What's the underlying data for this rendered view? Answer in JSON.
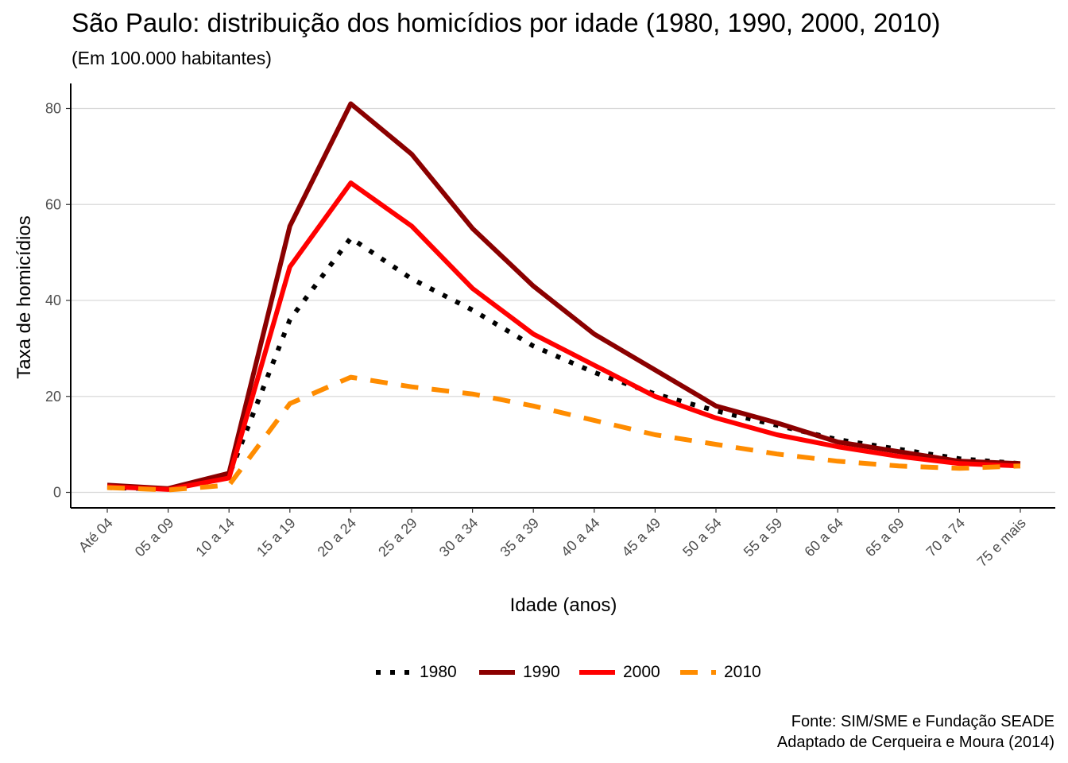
{
  "title": "São Paulo: distribuição dos homicídios por idade (1980, 1990, 2000, 2010)",
  "subtitle": "(Em 100.000 habitantes)",
  "caption": {
    "line1": "Fonte: SIM/SME e Fundação SEADE",
    "line2": "Adaptado de Cerqueira e Moura (2014)"
  },
  "chart_data": {
    "type": "line",
    "title": "São Paulo: distribuição dos homicídios por idade (1980, 1990, 2000, 2010)",
    "subtitle": "(Em 100.000 habitantes)",
    "xlabel": "Idade (anos)",
    "ylabel": "Taxa de homicídios",
    "ylim": [
      -3,
      85
    ],
    "yticks": [
      0,
      20,
      40,
      60,
      80
    ],
    "grid": true,
    "legend": "bottom",
    "categories": [
      "Até 04",
      "05 a 09",
      "10 a 14",
      "15 a 19",
      "20 a 24",
      "25 a 29",
      "30 a 34",
      "35 a 39",
      "40 a 44",
      "45 a 49",
      "50 a 54",
      "55 a 59",
      "60 a 64",
      "65 a 69",
      "70 a 74",
      "75 e mais"
    ],
    "series": [
      {
        "name": "1980",
        "color": "#000000",
        "dash": "dotted",
        "values": [
          1.0,
          0.7,
          3.5,
          36.0,
          53.0,
          44.5,
          38.0,
          30.5,
          25.0,
          20.5,
          17.0,
          14.0,
          11.0,
          9.0,
          7.0,
          6.0
        ]
      },
      {
        "name": "1990",
        "color": "#8b0000",
        "dash": "solid",
        "values": [
          1.5,
          0.8,
          4.0,
          55.5,
          81.0,
          70.5,
          55.0,
          43.0,
          33.0,
          25.5,
          18.0,
          14.5,
          10.5,
          8.5,
          6.5,
          6.0
        ]
      },
      {
        "name": "2000",
        "color": "#ff0000",
        "dash": "solid",
        "values": [
          1.2,
          0.6,
          3.0,
          47.0,
          64.5,
          55.5,
          42.5,
          33.0,
          26.5,
          20.0,
          15.5,
          12.0,
          9.5,
          7.5,
          6.0,
          5.5
        ]
      },
      {
        "name": "2010",
        "color": "#ff8c00",
        "dash": "dashed",
        "values": [
          1.0,
          0.5,
          1.5,
          18.5,
          24.0,
          22.0,
          20.5,
          18.0,
          15.0,
          12.0,
          10.0,
          8.0,
          6.5,
          5.5,
          5.0,
          5.5
        ]
      }
    ]
  }
}
